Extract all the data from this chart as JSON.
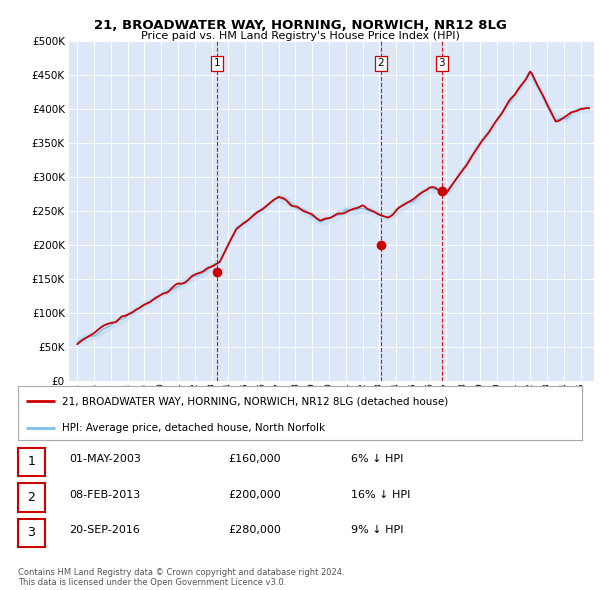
{
  "title1": "21, BROADWATER WAY, HORNING, NORWICH, NR12 8LG",
  "title2": "Price paid vs. HM Land Registry's House Price Index (HPI)",
  "legend_line1": "21, BROADWATER WAY, HORNING, NORWICH, NR12 8LG (detached house)",
  "legend_line2": "HPI: Average price, detached house, North Norfolk",
  "table_rows": [
    {
      "num": "1",
      "date": "01-MAY-2003",
      "price": "£160,000",
      "pct": "6% ↓ HPI"
    },
    {
      "num": "2",
      "date": "08-FEB-2013",
      "price": "£200,000",
      "pct": "16% ↓ HPI"
    },
    {
      "num": "3",
      "date": "20-SEP-2016",
      "price": "£280,000",
      "pct": "9% ↓ HPI"
    }
  ],
  "footer": "Contains HM Land Registry data © Crown copyright and database right 2024.\nThis data is licensed under the Open Government Licence v3.0.",
  "hpi_color": "#7bbfea",
  "hpi_fill_color": "#c5dff4",
  "price_color": "#cc0000",
  "sale_dot_color": "#cc0000",
  "vline_color": "#cc0000",
  "sale_year_nums": [
    2003.33,
    2013.1,
    2016.72
  ],
  "sale_prices": [
    160000,
    200000,
    280000
  ],
  "sale_labels": [
    "1",
    "2",
    "3"
  ],
  "ylim": [
    0,
    500000
  ],
  "yticks": [
    0,
    50000,
    100000,
    150000,
    200000,
    250000,
    300000,
    350000,
    400000,
    450000,
    500000
  ],
  "xlim_left": 1994.5,
  "xlim_right": 2025.8,
  "plot_bg": "#dce8f8",
  "fig_bg": "white",
  "grid_color": "white"
}
